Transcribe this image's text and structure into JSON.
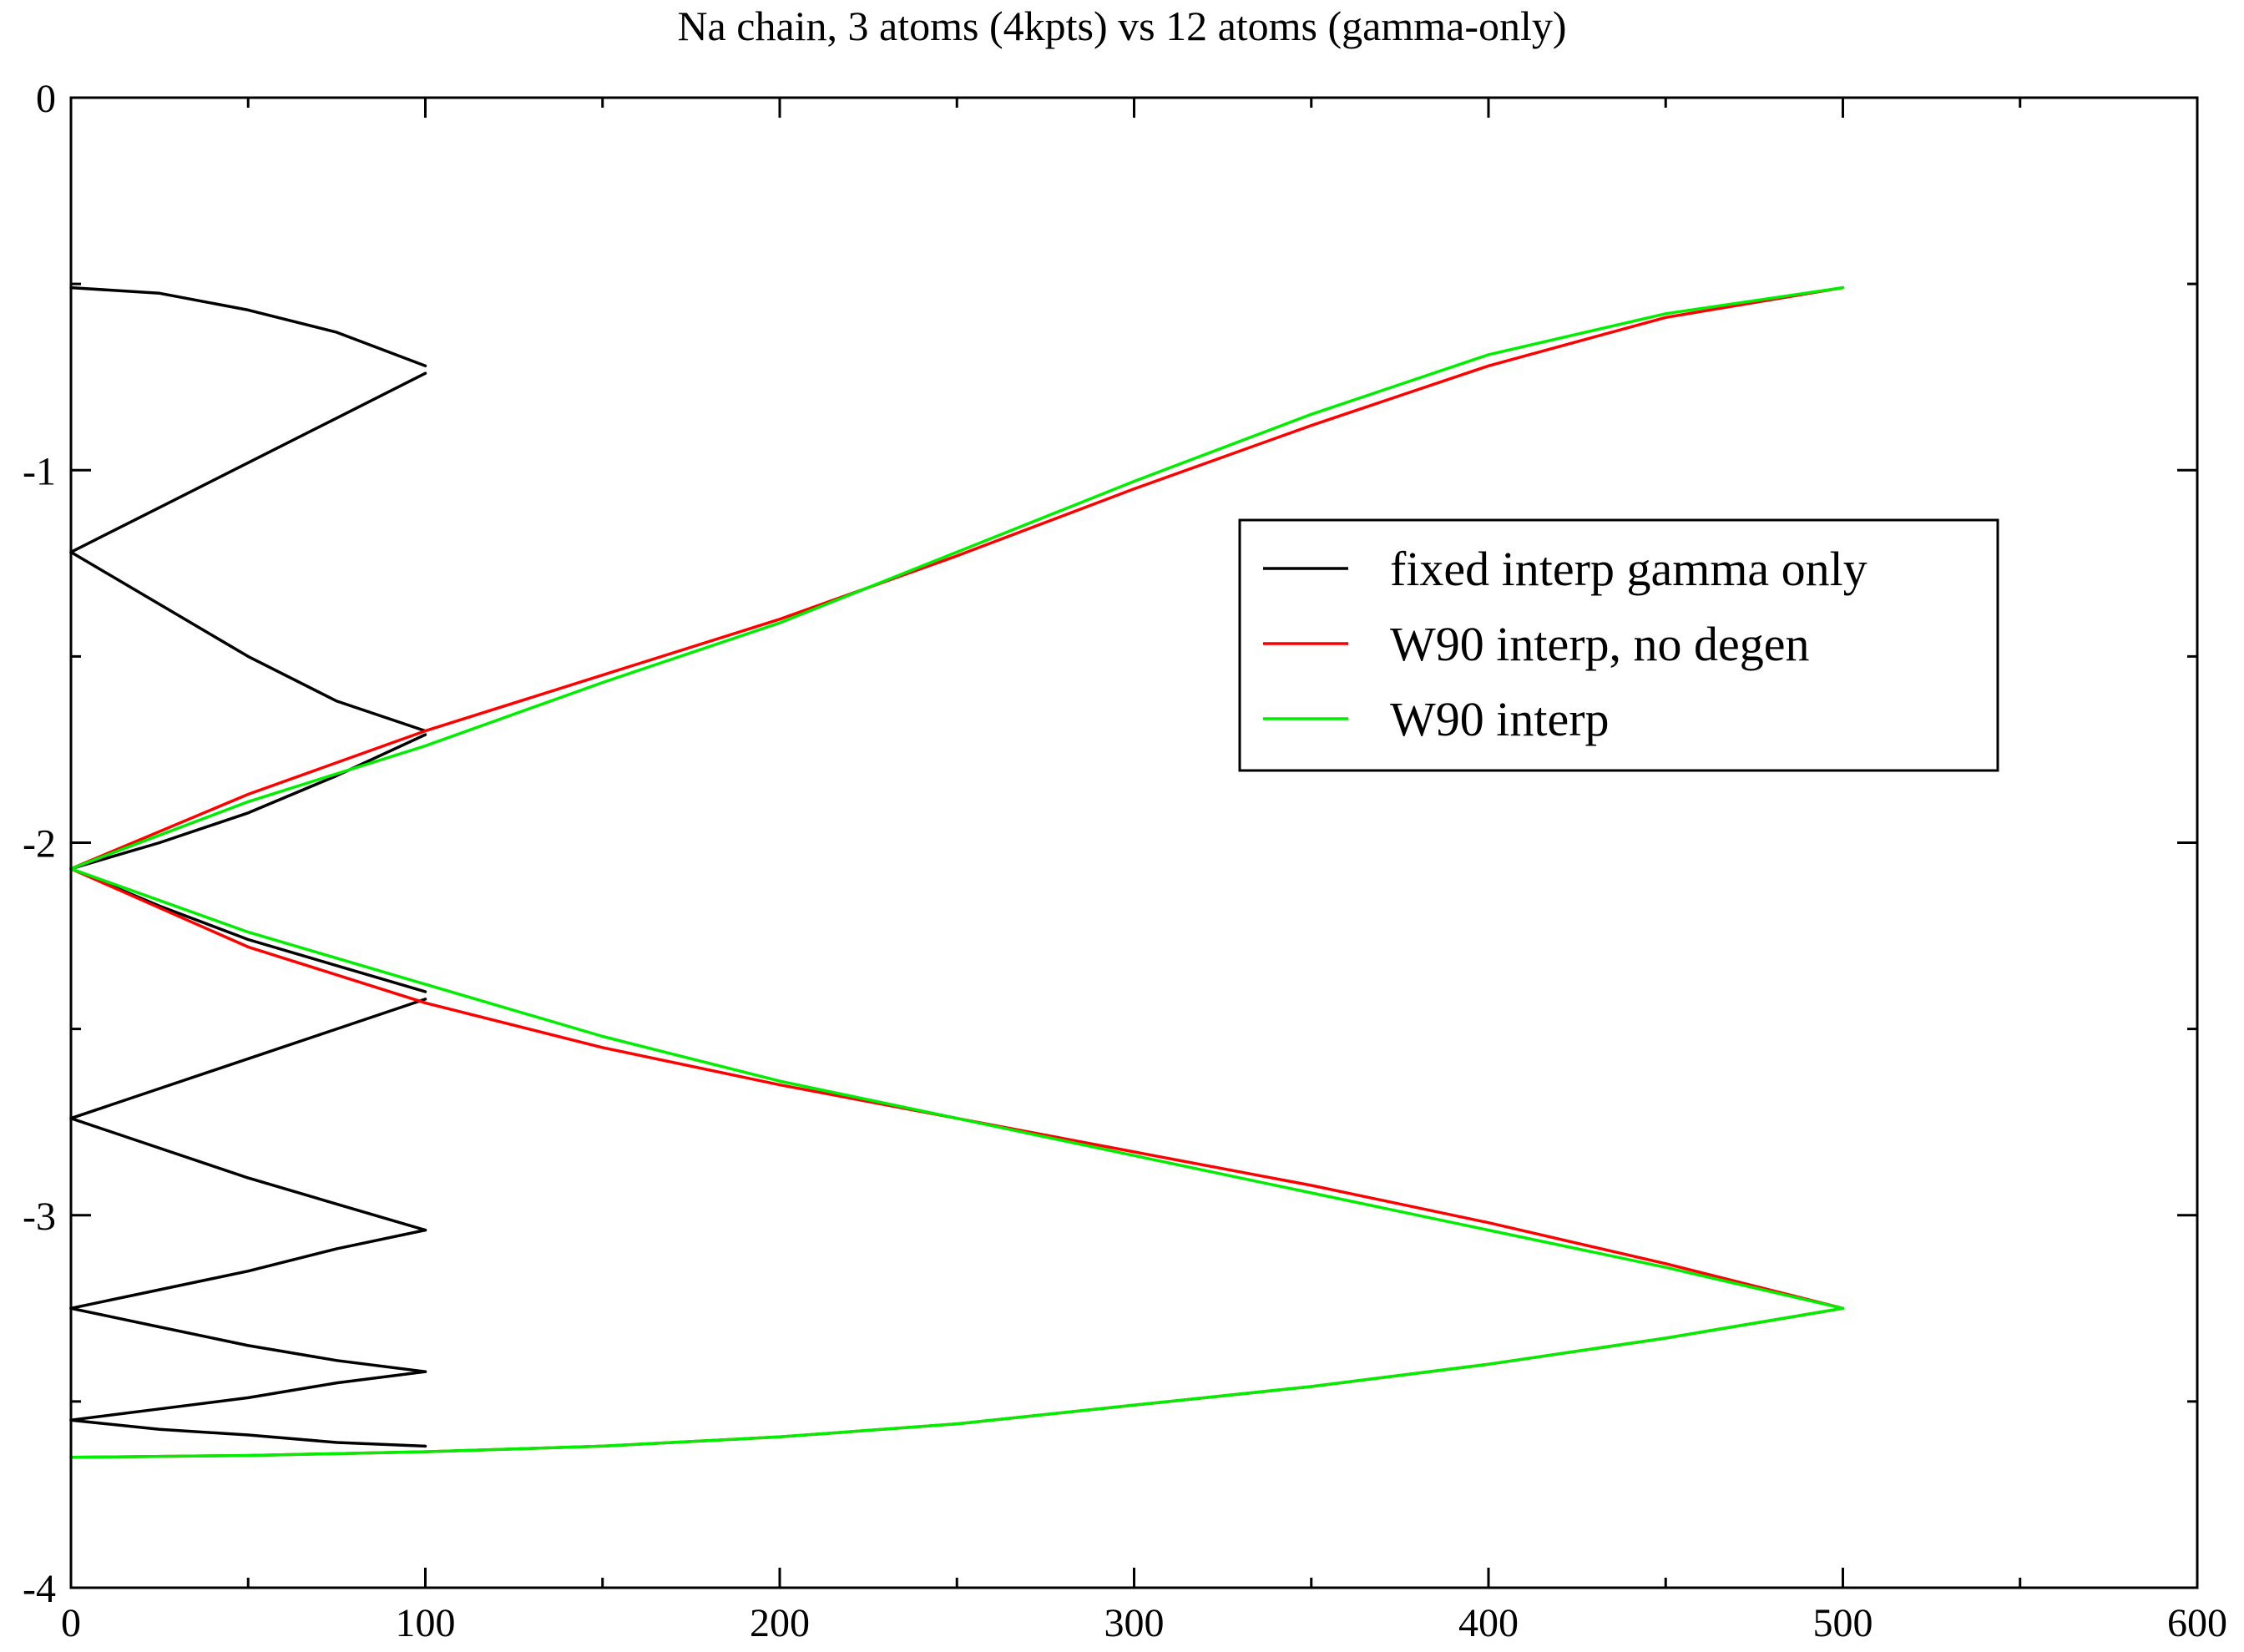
{
  "chart_data": {
    "type": "line",
    "title": "Na chain, 3 atoms (4kpts) vs 12 atoms (gamma-only)",
    "xlabel": "",
    "ylabel": "",
    "xlim": [
      0,
      600
    ],
    "ylim": [
      -4,
      0
    ],
    "x_ticks": [
      0,
      100,
      200,
      300,
      400,
      500,
      600
    ],
    "x_tick_labels": [
      "0",
      "100",
      "200",
      "300",
      "400",
      "500",
      "600"
    ],
    "x_minor_step": 50,
    "y_ticks": [
      0,
      -1,
      -2,
      -3,
      -4
    ],
    "y_tick_labels": [
      "0",
      "-1",
      "-2",
      "-3",
      "-4"
    ],
    "y_minor_step": 0.5,
    "grid": false,
    "legend_position": "right-center",
    "legend": [
      "fixed interp gamma only",
      "W90 interp, no degen",
      "W90 interp"
    ],
    "series": [
      {
        "name": "fixed interp gamma only",
        "color": "#000000",
        "segments": [
          [
            [
              0,
              -0.51
            ],
            [
              25,
              -0.525
            ],
            [
              50,
              -0.57
            ],
            [
              75,
              -0.63
            ],
            [
              100,
              -0.72
            ]
          ],
          [
            [
              100,
              -0.74
            ],
            [
              75,
              -0.86
            ],
            [
              50,
              -0.98
            ],
            [
              25,
              -1.1
            ],
            [
              0,
              -1.22
            ]
          ],
          [
            [
              0,
              -1.22
            ],
            [
              25,
              -1.36
            ],
            [
              50,
              -1.5
            ],
            [
              75,
              -1.62
            ],
            [
              100,
              -1.7
            ]
          ],
          [
            [
              100,
              -1.71
            ],
            [
              75,
              -1.82
            ],
            [
              50,
              -1.92
            ],
            [
              25,
              -2.0
            ],
            [
              0,
              -2.07
            ]
          ],
          [
            [
              0,
              -2.07
            ],
            [
              25,
              -2.17
            ],
            [
              50,
              -2.26
            ],
            [
              75,
              -2.33
            ],
            [
              100,
              -2.4
            ]
          ],
          [
            [
              100,
              -2.42
            ],
            [
              75,
              -2.5
            ],
            [
              50,
              -2.58
            ],
            [
              25,
              -2.66
            ],
            [
              0,
              -2.74
            ]
          ],
          [
            [
              0,
              -2.74
            ],
            [
              25,
              -2.82
            ],
            [
              50,
              -2.9
            ],
            [
              75,
              -2.97
            ],
            [
              100,
              -3.04
            ]
          ],
          [
            [
              100,
              -3.04
            ],
            [
              75,
              -3.09
            ],
            [
              50,
              -3.15
            ],
            [
              25,
              -3.2
            ],
            [
              0,
              -3.25
            ]
          ],
          [
            [
              0,
              -3.25
            ],
            [
              25,
              -3.3
            ],
            [
              50,
              -3.35
            ],
            [
              75,
              -3.39
            ],
            [
              100,
              -3.42
            ]
          ],
          [
            [
              100,
              -3.42
            ],
            [
              75,
              -3.45
            ],
            [
              50,
              -3.49
            ],
            [
              25,
              -3.52
            ],
            [
              0,
              -3.55
            ]
          ],
          [
            [
              0,
              -3.55
            ],
            [
              25,
              -3.575
            ],
            [
              50,
              -3.59
            ],
            [
              75,
              -3.61
            ],
            [
              100,
              -3.62
            ]
          ]
        ]
      },
      {
        "name": "W90 interp, no degen",
        "color": "#ff0000",
        "segments": [
          [
            [
              0,
              -2.07
            ],
            [
              50,
              -1.87
            ],
            [
              100,
              -1.7
            ],
            [
              150,
              -1.55
            ],
            [
              200,
              -1.4
            ],
            [
              250,
              -1.23
            ],
            [
              300,
              -1.05
            ],
            [
              350,
              -0.88
            ],
            [
              400,
              -0.72
            ],
            [
              450,
              -0.59
            ],
            [
              500,
              -0.51
            ]
          ],
          [
            [
              0,
              -2.07
            ],
            [
              50,
              -2.28
            ],
            [
              100,
              -2.43
            ],
            [
              150,
              -2.55
            ],
            [
              200,
              -2.65
            ],
            [
              250,
              -2.74
            ],
            [
              300,
              -2.83
            ],
            [
              350,
              -2.92
            ],
            [
              400,
              -3.02
            ],
            [
              450,
              -3.13
            ],
            [
              500,
              -3.25
            ]
          ],
          [
            [
              0,
              -3.65
            ],
            [
              50,
              -3.645
            ],
            [
              100,
              -3.635
            ],
            [
              150,
              -3.62
            ],
            [
              200,
              -3.595
            ],
            [
              250,
              -3.56
            ],
            [
              300,
              -3.51
            ],
            [
              350,
              -3.46
            ],
            [
              400,
              -3.4
            ],
            [
              450,
              -3.33
            ],
            [
              500,
              -3.25
            ]
          ]
        ]
      },
      {
        "name": "W90 interp",
        "color": "#00ee00",
        "segments": [
          [
            [
              0,
              -2.07
            ],
            [
              50,
              -1.89
            ],
            [
              100,
              -1.74
            ],
            [
              150,
              -1.57
            ],
            [
              200,
              -1.41
            ],
            [
              250,
              -1.22
            ],
            [
              300,
              -1.03
            ],
            [
              350,
              -0.85
            ],
            [
              400,
              -0.69
            ],
            [
              450,
              -0.58
            ],
            [
              500,
              -0.51
            ]
          ],
          [
            [
              0,
              -2.07
            ],
            [
              50,
              -2.24
            ],
            [
              100,
              -2.38
            ],
            [
              150,
              -2.52
            ],
            [
              200,
              -2.64
            ],
            [
              250,
              -2.74
            ],
            [
              300,
              -2.84
            ],
            [
              350,
              -2.94
            ],
            [
              400,
              -3.04
            ],
            [
              450,
              -3.14
            ],
            [
              500,
              -3.25
            ]
          ],
          [
            [
              0,
              -3.65
            ],
            [
              50,
              -3.645
            ],
            [
              100,
              -3.635
            ],
            [
              150,
              -3.62
            ],
            [
              200,
              -3.595
            ],
            [
              250,
              -3.56
            ],
            [
              300,
              -3.51
            ],
            [
              350,
              -3.46
            ],
            [
              400,
              -3.4
            ],
            [
              450,
              -3.33
            ],
            [
              500,
              -3.25
            ]
          ]
        ]
      }
    ]
  }
}
